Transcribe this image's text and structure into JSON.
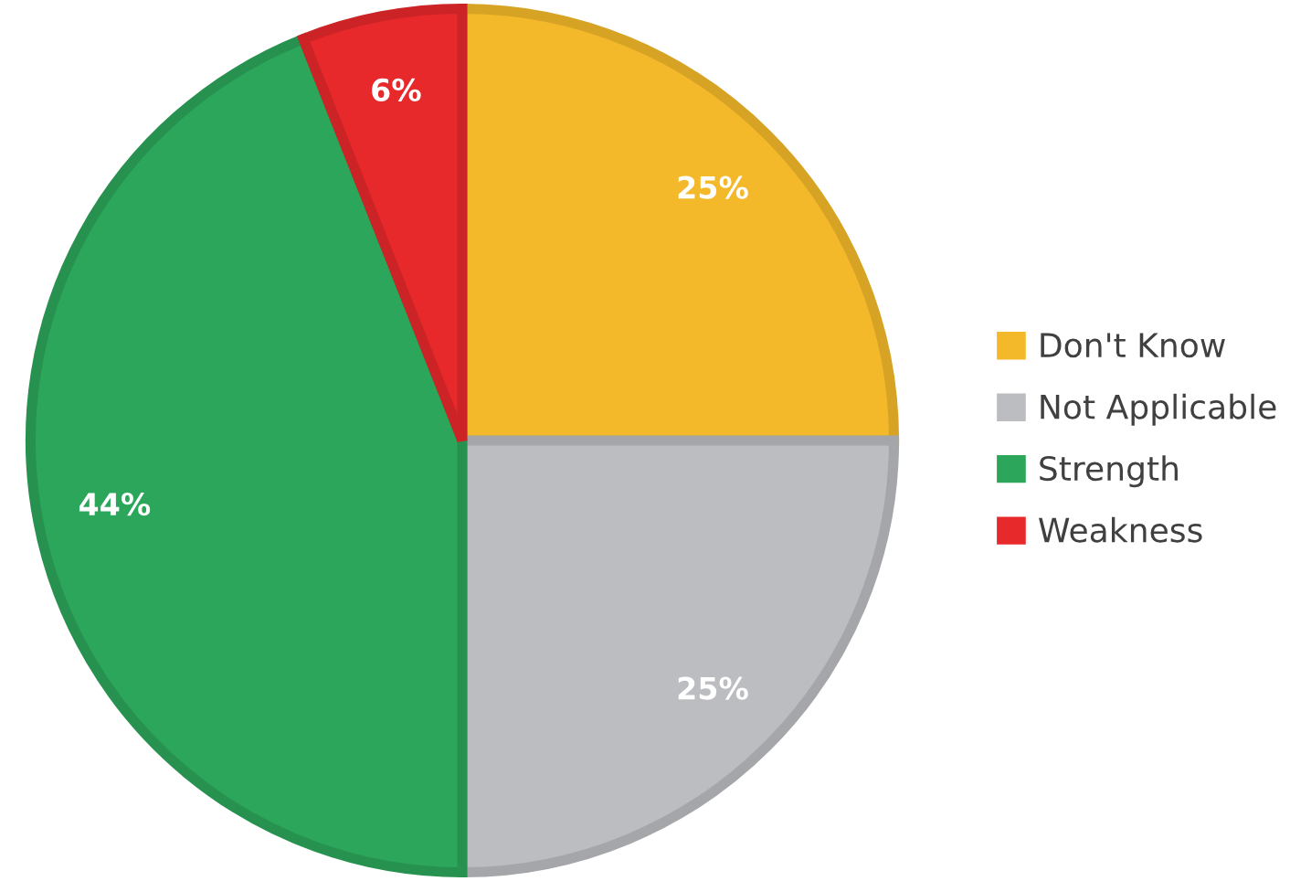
{
  "chart_data": {
    "type": "pie",
    "categories": [
      "Don't Know",
      "Not Applicable",
      "Strength",
      "Weakness"
    ],
    "values": [
      25,
      25,
      44,
      6
    ],
    "value_labels": [
      "25%",
      "25%",
      "44%",
      "6%"
    ],
    "colors": [
      "#f4b92a",
      "#bcbdc0",
      "#2ca65a",
      "#e8292b"
    ],
    "legend": "right"
  }
}
